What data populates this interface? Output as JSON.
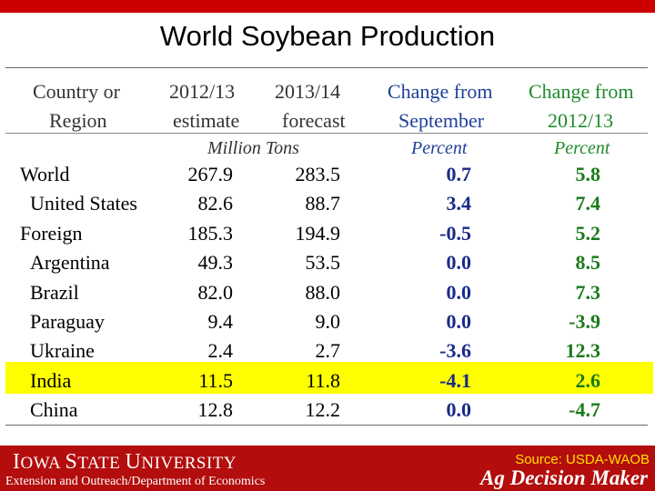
{
  "title": "World Soybean Production",
  "table": {
    "headers": {
      "region": [
        "Country or",
        "Region"
      ],
      "est": [
        "2012/13",
        "estimate"
      ],
      "fc": [
        "2013/14",
        "forecast"
      ],
      "chg_sep": [
        "Change from",
        "September"
      ],
      "chg_prev": [
        "Change from",
        "2012/13"
      ]
    },
    "units": {
      "tons": "Million Tons",
      "pct1": "Percent",
      "pct2": "Percent"
    },
    "rows": [
      {
        "region": "World",
        "est": "267.9",
        "fc": "283.5",
        "chg_sep": "0.7",
        "chg_prev": "5.8"
      },
      {
        "region": "United States",
        "est": "82.6",
        "fc": "88.7",
        "chg_sep": "3.4",
        "chg_prev": "7.4"
      },
      {
        "region": "Foreign",
        "est": "185.3",
        "fc": "194.9",
        "chg_sep": "-0.5",
        "chg_prev": "5.2"
      },
      {
        "region": "Argentina",
        "est": "49.3",
        "fc": "53.5",
        "chg_sep": "0.0",
        "chg_prev": "8.5"
      },
      {
        "region": "Brazil",
        "est": "82.0",
        "fc": "88.0",
        "chg_sep": "0.0",
        "chg_prev": "7.3"
      },
      {
        "region": "Paraguay",
        "est": "9.4",
        "fc": "9.0",
        "chg_sep": "0.0",
        "chg_prev": "-3.9"
      },
      {
        "region": "Ukraine",
        "est": "2.4",
        "fc": "2.7",
        "chg_sep": "-3.6",
        "chg_prev": "12.3"
      },
      {
        "region": "India",
        "est": "11.5",
        "fc": "11.8",
        "chg_sep": "-4.1",
        "chg_prev": "2.6"
      },
      {
        "region": "China",
        "est": "12.8",
        "fc": "12.2",
        "chg_sep": "0.0",
        "chg_prev": "-4.7"
      }
    ],
    "highlight_row": "India",
    "highlight_color": "#ffff00"
  },
  "footer": {
    "university_big1": "I",
    "university_small1": "OWA ",
    "university_big2": "S",
    "university_small2": "TATE ",
    "university_big3": "U",
    "university_small3": "NIVERSITY",
    "extension": "Extension and Outreach/Department of Economics",
    "source": "Source: USDA-WAOB",
    "brand": "Ag Decision Maker"
  },
  "colors": {
    "accent": "#b30d0d",
    "blue": "#1a2a8a",
    "green": "#1a7a1a",
    "source": "#ffe000"
  }
}
